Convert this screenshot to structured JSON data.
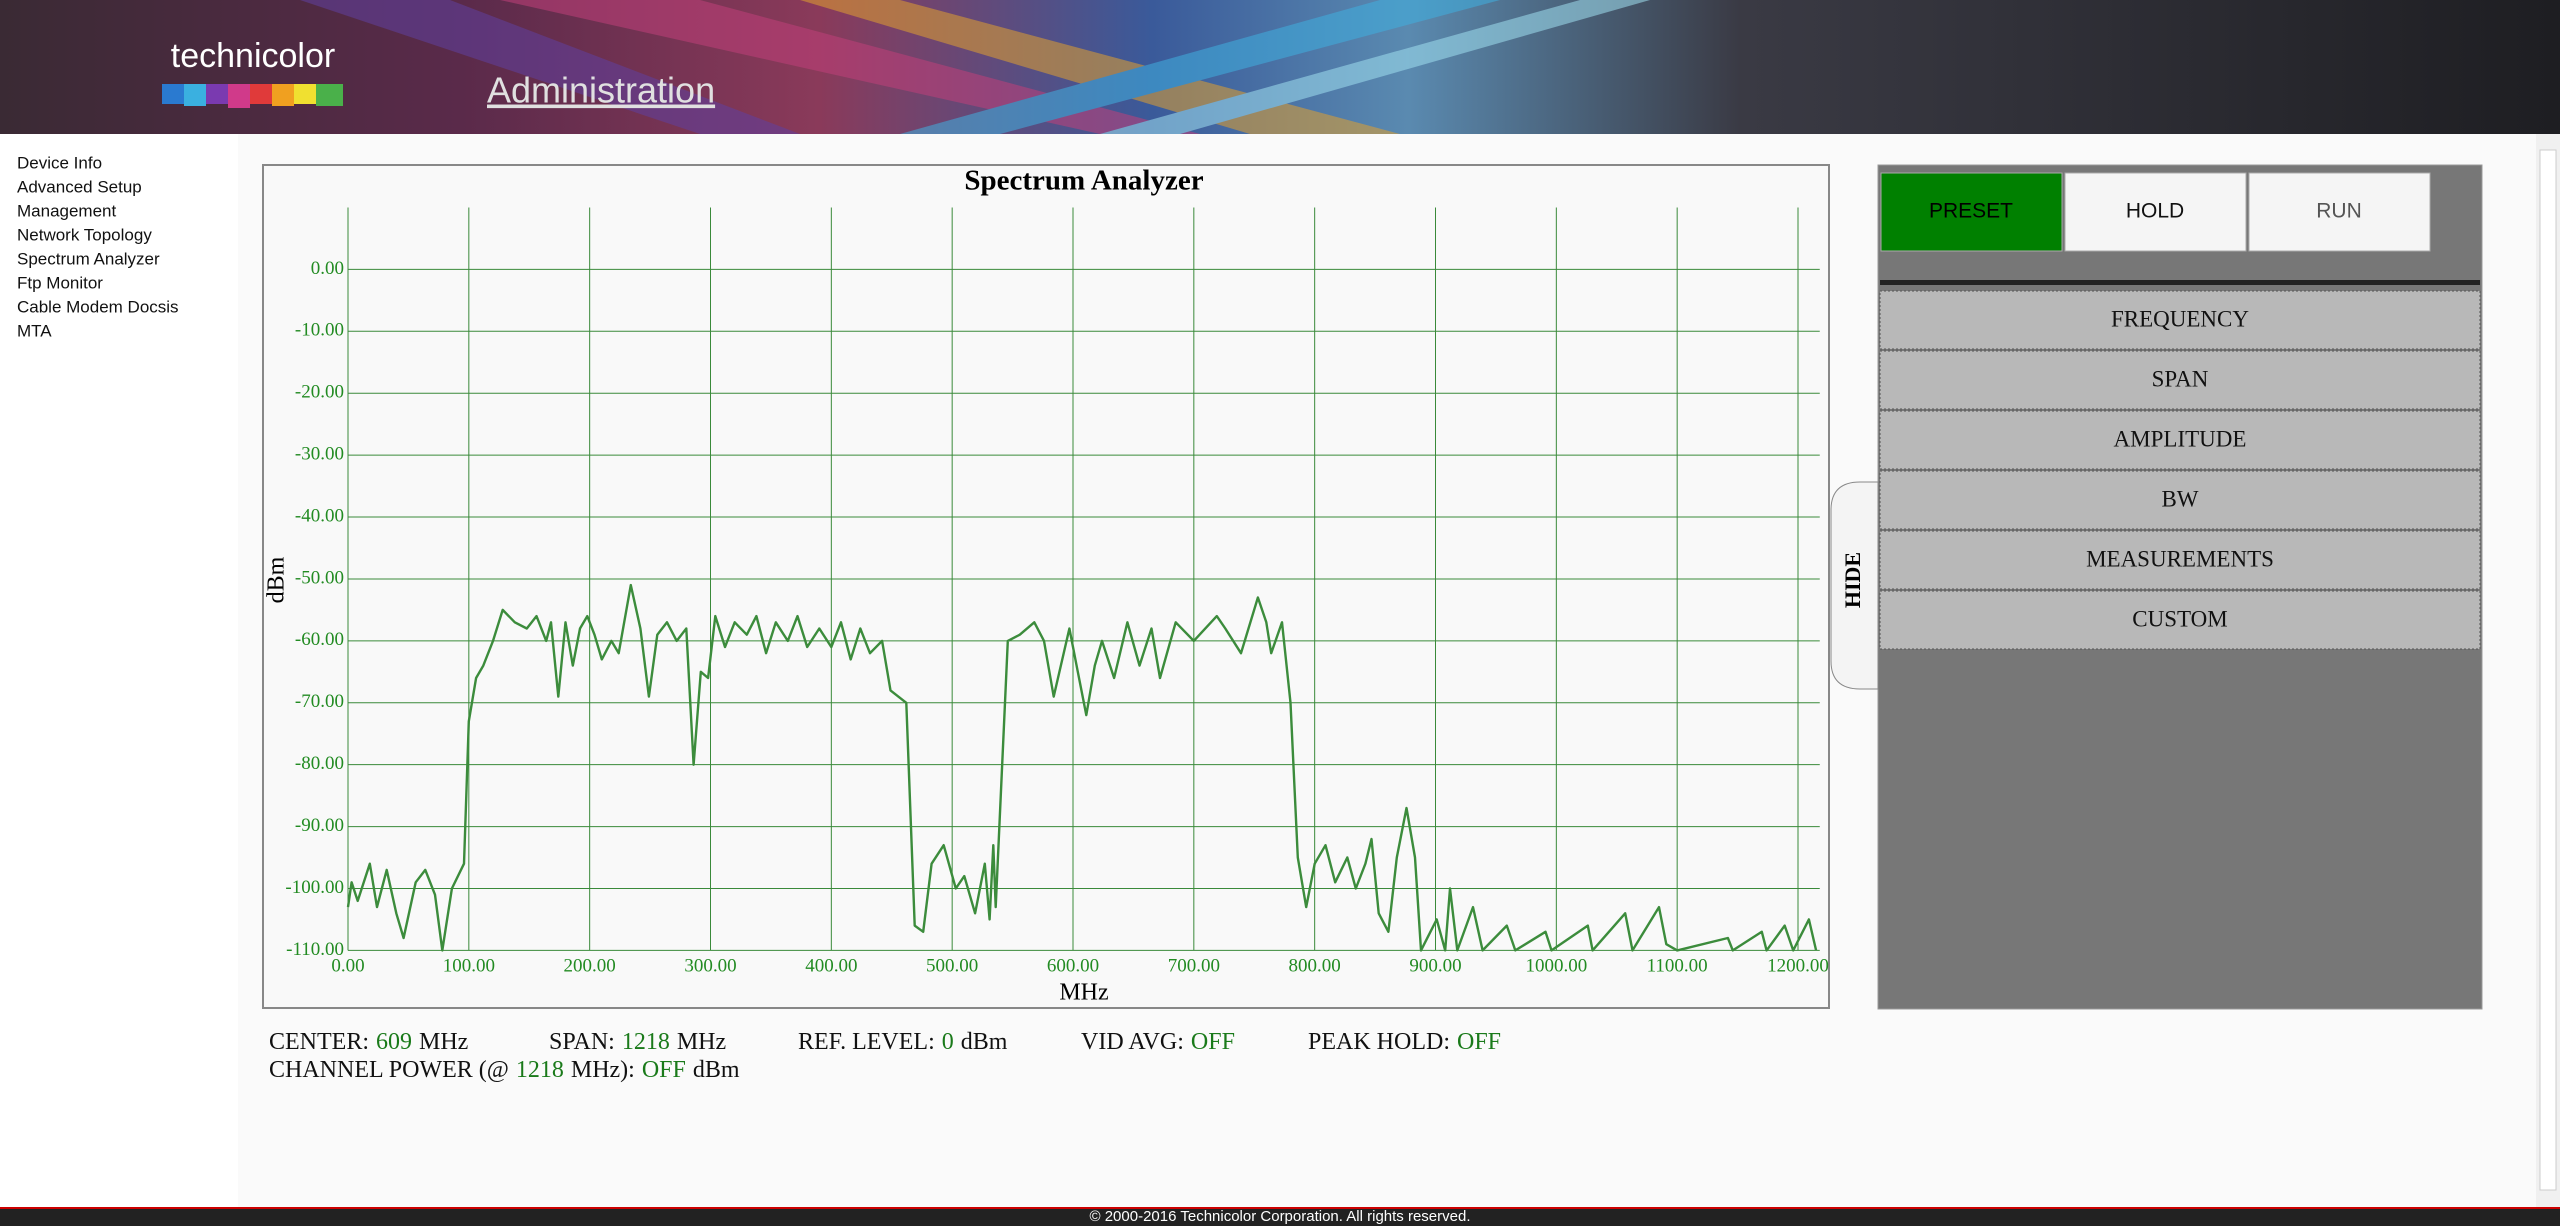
{
  "header": {
    "brand": "technicolor",
    "title": "Administration"
  },
  "nav": [
    "Device Info",
    "Advanced Setup",
    "Management",
    "Network Topology",
    "Spectrum Analyzer",
    "Ftp Monitor",
    "Cable Modem Docsis",
    "MTA"
  ],
  "chart_data": {
    "type": "line",
    "title": "Spectrum Analyzer",
    "x_label": "MHz",
    "y_label": "dBm",
    "color": "#3c8c3c",
    "grid": true,
    "x": [
      0,
      3,
      8,
      18,
      24,
      32,
      40,
      46,
      56,
      64,
      72,
      78,
      86,
      96,
      100,
      106,
      112,
      120,
      128,
      138,
      148,
      156,
      164,
      168,
      174,
      180,
      186,
      192,
      198,
      204,
      210,
      218,
      224,
      234,
      242,
      249,
      256,
      264,
      272,
      280,
      286,
      292,
      298,
      304,
      312,
      320,
      330,
      338,
      346,
      354,
      364,
      372,
      380,
      390,
      400,
      408,
      416,
      424,
      432,
      442,
      449,
      462,
      469,
      476,
      483,
      493,
      503,
      510,
      519,
      527,
      531,
      534,
      536,
      546,
      556,
      568,
      576,
      584,
      597,
      604,
      611,
      618,
      624,
      634,
      645,
      655,
      665,
      672,
      685,
      700,
      719,
      726,
      739,
      753,
      760,
      764,
      773,
      780,
      786,
      793,
      800,
      809,
      817,
      827,
      834,
      842,
      847,
      853,
      861,
      868,
      876,
      883,
      888,
      901,
      908,
      912,
      918,
      931,
      939,
      959,
      966,
      991,
      996,
      1026,
      1030,
      1057,
      1063,
      1085,
      1091,
      1100,
      1142,
      1146,
      1170,
      1174,
      1189,
      1196,
      1209,
      1215
    ],
    "values": [
      -103,
      -99,
      -102,
      -96,
      -103,
      -97,
      -104,
      -108,
      -99,
      -97,
      -101,
      -110,
      -100,
      -96,
      -73,
      -66,
      -64,
      -60,
      -55,
      -57,
      -58,
      -56,
      -60,
      -57,
      -69,
      -57,
      -64,
      -58,
      -56,
      -59,
      -63,
      -60,
      -62,
      -51,
      -58,
      -69,
      -59,
      -57,
      -60,
      -58,
      -80,
      -65,
      -66,
      -56,
      -61,
      -57,
      -59,
      -56,
      -62,
      -57,
      -60,
      -56,
      -61,
      -58,
      -61,
      -57,
      -63,
      -58,
      -62,
      -60,
      -68,
      -70,
      -106,
      -107,
      -96,
      -93,
      -100,
      -98,
      -104,
      -96,
      -105,
      -93,
      -103,
      -60,
      -59,
      -57,
      -60,
      -69,
      -58,
      -65,
      -72,
      -64,
      -60,
      -66,
      -57,
      -64,
      -58,
      -66,
      -57,
      -60,
      -56,
      -58,
      -62,
      -53,
      -57,
      -62,
      -57,
      -70,
      -95,
      -103,
      -96,
      -93,
      -99,
      -95,
      -100,
      -96,
      -92,
      -104,
      -107,
      -95,
      -87,
      -95,
      -110,
      -105,
      -110,
      -100,
      -110,
      -103,
      -110,
      -106,
      -110,
      -107,
      -110,
      -106,
      -110,
      -104,
      -110,
      -103,
      -109,
      -110,
      -108,
      -110,
      -107,
      -110,
      -106,
      -110,
      -105,
      -110
    ],
    "xlim": [
      0,
      1218
    ],
    "ylim": [
      -110,
      10
    ],
    "xticks": [
      {
        "value": 0,
        "label": "0.00"
      },
      {
        "value": 100,
        "label": "100.00"
      },
      {
        "value": 200,
        "label": "200.00"
      },
      {
        "value": 300,
        "label": "300.00"
      },
      {
        "value": 400,
        "label": "400.00"
      },
      {
        "value": 500,
        "label": "500.00"
      },
      {
        "value": 600,
        "label": "600.00"
      },
      {
        "value": 700,
        "label": "700.00"
      },
      {
        "value": 800,
        "label": "800.00"
      },
      {
        "value": 900,
        "label": "900.00"
      },
      {
        "value": 1000,
        "label": "1000.00"
      },
      {
        "value": 1100,
        "label": "1100.00"
      },
      {
        "value": 1200,
        "label": "1200.00"
      }
    ],
    "yticks": [
      {
        "value": 0,
        "label": "0.00"
      },
      {
        "value": -10,
        "label": "-10.00"
      },
      {
        "value": -20,
        "label": "-20.00"
      },
      {
        "value": -30,
        "label": "-30.00"
      },
      {
        "value": -40,
        "label": "-40.00"
      },
      {
        "value": -50,
        "label": "-50.00"
      },
      {
        "value": -60,
        "label": "-60.00"
      },
      {
        "value": -70,
        "label": "-70.00"
      },
      {
        "value": -80,
        "label": "-80.00"
      },
      {
        "value": -90,
        "label": "-90.00"
      },
      {
        "value": -100,
        "label": "-100.00"
      },
      {
        "value": -110,
        "label": "-110.00"
      }
    ]
  },
  "status": [
    {
      "label": "CENTER:",
      "value": 609,
      "unit": "MHz"
    },
    {
      "label": "SPAN:",
      "value": 1218,
      "unit": "MHz"
    },
    {
      "label": "REF. LEVEL:",
      "value": 0,
      "unit": "dBm"
    },
    {
      "label": "VID AVG:",
      "value": "OFF"
    },
    {
      "label": "PEAK HOLD:",
      "value": "OFF"
    }
  ],
  "channel_power": {
    "label": "CHANNEL POWER (@",
    "value": 1218,
    "mid": "MHz):",
    "state": "OFF",
    "unit": "dBm"
  },
  "controls": {
    "buttons": [
      "PRESET",
      "HOLD",
      "RUN"
    ],
    "menu": [
      "FREQUENCY",
      "SPAN",
      "AMPLITUDE",
      "BW",
      "MEASUREMENTS",
      "CUSTOM"
    ],
    "hide": "HIDE"
  },
  "footer": "© 2000-2016 Technicolor Corporation. All rights reserved."
}
